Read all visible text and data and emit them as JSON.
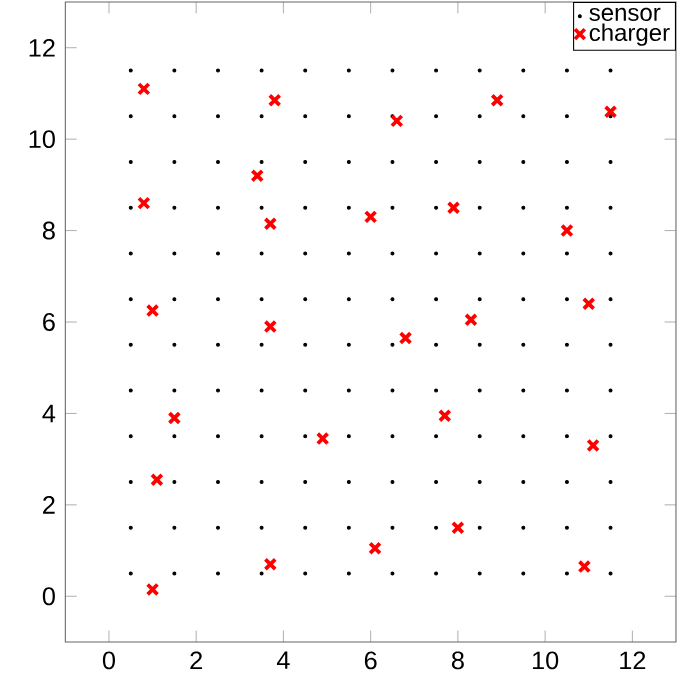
{
  "chart_data": {
    "type": "scatter",
    "xlim": [
      -1,
      13
    ],
    "ylim": [
      -1,
      13
    ],
    "xticks": [
      0,
      2,
      4,
      6,
      8,
      10,
      12
    ],
    "yticks": [
      0,
      2,
      4,
      6,
      8,
      10,
      12
    ],
    "grid": false,
    "legend": "top right",
    "series": [
      {
        "name": "sensor",
        "color": "#000000",
        "marker": "circle",
        "x": [
          0.5,
          1.5,
          2.5,
          3.5,
          4.5,
          5.5,
          6.5,
          7.5,
          8.5,
          9.5,
          10.5,
          11.5,
          0.5,
          1.5,
          2.5,
          3.5,
          4.5,
          5.5,
          6.5,
          7.5,
          8.5,
          9.5,
          10.5,
          11.5,
          0.5,
          1.5,
          2.5,
          3.5,
          4.5,
          5.5,
          6.5,
          7.5,
          8.5,
          9.5,
          10.5,
          11.5,
          0.5,
          1.5,
          2.5,
          3.5,
          4.5,
          5.5,
          6.5,
          7.5,
          8.5,
          9.5,
          10.5,
          11.5,
          0.5,
          1.5,
          2.5,
          3.5,
          4.5,
          5.5,
          6.5,
          7.5,
          8.5,
          9.5,
          10.5,
          11.5,
          0.5,
          1.5,
          2.5,
          3.5,
          4.5,
          5.5,
          6.5,
          7.5,
          8.5,
          9.5,
          10.5,
          11.5,
          0.5,
          1.5,
          2.5,
          3.5,
          4.5,
          5.5,
          6.5,
          7.5,
          8.5,
          9.5,
          10.5,
          11.5,
          0.5,
          1.5,
          2.5,
          3.5,
          4.5,
          5.5,
          6.5,
          7.5,
          8.5,
          9.5,
          10.5,
          11.5,
          0.5,
          1.5,
          2.5,
          3.5,
          4.5,
          5.5,
          6.5,
          7.5,
          8.5,
          9.5,
          10.5,
          11.5,
          0.5,
          1.5,
          2.5,
          3.5,
          4.5,
          5.5,
          6.5,
          7.5,
          8.5,
          9.5,
          10.5,
          11.5,
          0.5,
          1.5,
          2.5,
          3.5,
          4.5,
          5.5,
          6.5,
          7.5,
          8.5,
          9.5,
          10.5,
          11.5,
          0.5,
          1.5,
          2.5,
          3.5,
          4.5,
          5.5,
          6.5,
          7.5,
          8.5,
          9.5,
          10.5,
          11.5
        ],
        "values": [
          0.5,
          0.5,
          0.5,
          0.5,
          0.5,
          0.5,
          0.5,
          0.5,
          0.5,
          0.5,
          0.5,
          0.5,
          1.5,
          1.5,
          1.5,
          1.5,
          1.5,
          1.5,
          1.5,
          1.5,
          1.5,
          1.5,
          1.5,
          1.5,
          2.5,
          2.5,
          2.5,
          2.5,
          2.5,
          2.5,
          2.5,
          2.5,
          2.5,
          2.5,
          2.5,
          2.5,
          3.5,
          3.5,
          3.5,
          3.5,
          3.5,
          3.5,
          3.5,
          3.5,
          3.5,
          3.5,
          3.5,
          3.5,
          4.5,
          4.5,
          4.5,
          4.5,
          4.5,
          4.5,
          4.5,
          4.5,
          4.5,
          4.5,
          4.5,
          4.5,
          5.5,
          5.5,
          5.5,
          5.5,
          5.5,
          5.5,
          5.5,
          5.5,
          5.5,
          5.5,
          5.5,
          5.5,
          6.5,
          6.5,
          6.5,
          6.5,
          6.5,
          6.5,
          6.5,
          6.5,
          6.5,
          6.5,
          6.5,
          6.5,
          7.5,
          7.5,
          7.5,
          7.5,
          7.5,
          7.5,
          7.5,
          7.5,
          7.5,
          7.5,
          7.5,
          7.5,
          8.5,
          8.5,
          8.5,
          8.5,
          8.5,
          8.5,
          8.5,
          8.5,
          8.5,
          8.5,
          8.5,
          8.5,
          9.5,
          9.5,
          9.5,
          9.5,
          9.5,
          9.5,
          9.5,
          9.5,
          9.5,
          9.5,
          9.5,
          9.5,
          10.5,
          10.5,
          10.5,
          10.5,
          10.5,
          10.5,
          10.5,
          10.5,
          10.5,
          10.5,
          10.5,
          10.5,
          11.5,
          11.5,
          11.5,
          11.5,
          11.5,
          11.5,
          11.5,
          11.5,
          11.5,
          11.5,
          11.5,
          11.5
        ]
      },
      {
        "name": "charger",
        "color": "#ff0000",
        "marker": "cross",
        "x": [
          0.8,
          3.8,
          6.6,
          8.9,
          11.5,
          3.4,
          0.8,
          3.7,
          6.0,
          7.9,
          10.5,
          1.0,
          3.7,
          6.8,
          8.3,
          11.0,
          1.5,
          7.7,
          4.9,
          11.1,
          1.1,
          6.1,
          3.7,
          8.0,
          10.9,
          1.0
        ],
        "values": [
          11.1,
          10.85,
          10.4,
          10.85,
          10.6,
          9.2,
          8.6,
          8.15,
          8.3,
          8.5,
          8.0,
          6.25,
          5.9,
          5.65,
          6.05,
          6.4,
          3.9,
          3.95,
          3.45,
          3.3,
          2.55,
          1.05,
          0.7,
          1.5,
          0.65,
          0.15
        ]
      }
    ]
  }
}
